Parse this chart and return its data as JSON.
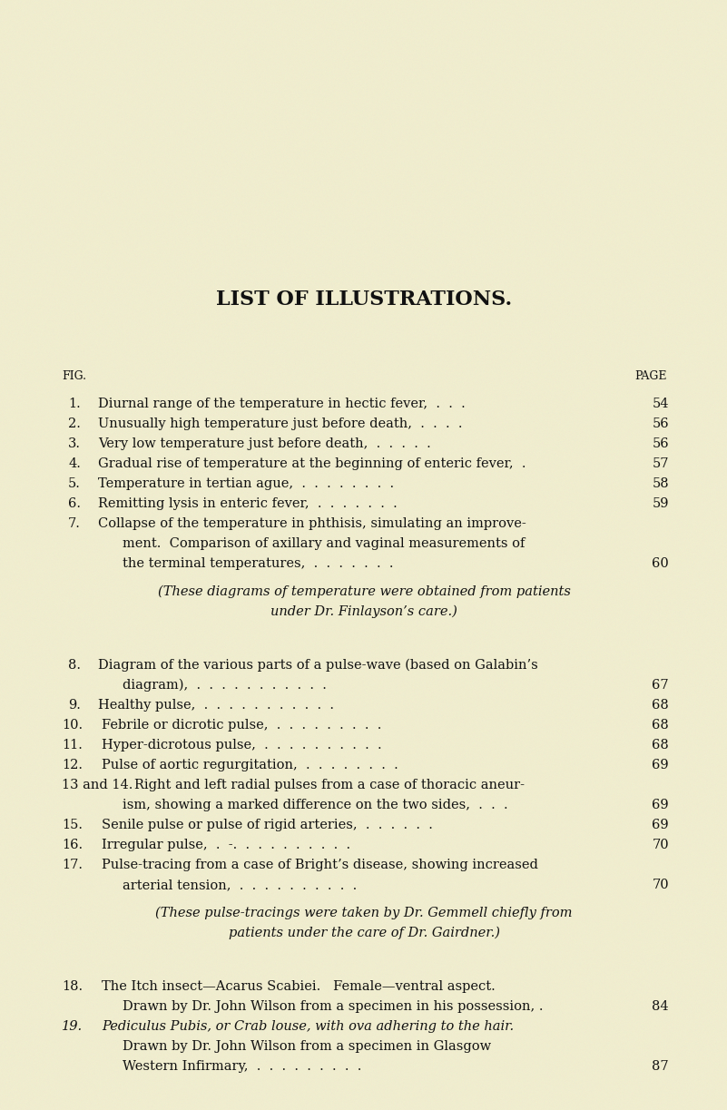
{
  "background_color": "#f0edcf",
  "title": "LIST OF ILLUSTRATIONS.",
  "title_fontsize": 16,
  "header_fig": "FIG.",
  "header_page": "PAGE",
  "bg_texture": true,
  "entries": [
    {
      "num": "1.",
      "lines": [
        "Diurnal range of the temperature in hectic fever,  .  .  ."
      ],
      "page": "54",
      "italic": false
    },
    {
      "num": "2.",
      "lines": [
        "Unusually high temperature just before death,  .  .  .  ."
      ],
      "page": "56",
      "italic": false
    },
    {
      "num": "3.",
      "lines": [
        "Very low temperature just before death,  .  .  .  .  ."
      ],
      "page": "56",
      "italic": false
    },
    {
      "num": "4.",
      "lines": [
        "Gradual rise of temperature at the beginning of enteric fever,  ."
      ],
      "page": "57",
      "italic": false
    },
    {
      "num": "5.",
      "lines": [
        "Temperature in tertian ague,  .  .  .  .  .  .  .  ."
      ],
      "page": "58",
      "italic": false
    },
    {
      "num": "6.",
      "lines": [
        "Remitting lysis in enteric fever,  .  .  .  .  .  .  ."
      ],
      "page": "59",
      "italic": false
    },
    {
      "num": "7.",
      "lines": [
        "Collapse of the temperature in phthisis, simulating an improve-",
        "ment.  Comparison of axillary and vaginal measurements of",
        "the terminal temperatures,  .  .  .  .  .  .  ."
      ],
      "page": "60",
      "italic": false,
      "continuation_indent": true
    },
    {
      "num": "",
      "lines": [
        "(These diagrams of temperature were obtained from patients",
        "under Dr. Finlayson’s care.)"
      ],
      "page": "",
      "italic": true,
      "centered": true,
      "spacer_after": true,
      "spacer_before": false
    },
    {
      "num": "8.",
      "lines": [
        "Diagram of the various parts of a pulse-wave (based on Galabin’s",
        "diagram),  .  .  .  .  .  .  .  .  .  .  ."
      ],
      "page": "67",
      "italic": false,
      "continuation_indent": true,
      "spacer_before": true
    },
    {
      "num": "9.",
      "lines": [
        "Healthy pulse,  .  .  .  .  .  .  .  .  .  .  ."
      ],
      "page": "68",
      "italic": false
    },
    {
      "num": "10.",
      "lines": [
        "Febrile or dicrotic pulse,  .  .  .  .  .  .  .  .  ."
      ],
      "page": "68",
      "italic": false
    },
    {
      "num": "11.",
      "lines": [
        "Hyper-dicrotous pulse,  .  .  .  .  .  .  .  .  .  ."
      ],
      "page": "68",
      "italic": false
    },
    {
      "num": "12.",
      "lines": [
        "Pulse of aortic regurgitation,  .  .  .  .  .  .  .  ."
      ],
      "page": "69",
      "italic": false
    },
    {
      "num": "13 and 14.",
      "lines": [
        "Right and left radial pulses from a case of thoracic aneur-",
        "ism, showing a marked difference on the two sides,  .  .  ."
      ],
      "page": "69",
      "italic": false,
      "continuation_indent": true
    },
    {
      "num": "15.",
      "lines": [
        "Senile pulse or pulse of rigid arteries,  .  .  .  .  .  ."
      ],
      "page": "69",
      "italic": false
    },
    {
      "num": "16.",
      "lines": [
        "Irregular pulse,  .  -.  .  .  .  .  .  .  .  .  ."
      ],
      "page": "70",
      "italic": false
    },
    {
      "num": "17.",
      "lines": [
        "Pulse-tracing from a case of Bright’s disease, showing increased",
        "arterial tension,  .  .  .  .  .  .  .  .  .  ."
      ],
      "page": "70",
      "italic": false,
      "continuation_indent": true
    },
    {
      "num": "",
      "lines": [
        "(These pulse-tracings were taken by Dr. Gemmell chiefly from",
        "patients under the care of Dr. Gairdner.)"
      ],
      "page": "",
      "italic": true,
      "centered": true,
      "spacer_after": true,
      "spacer_before": false
    },
    {
      "num": "18.",
      "lines": [
        "The Itch insect—Acarus Scabiei.   Female—ventral aspect.",
        "Drawn by Dr. John Wilson from a specimen in his possession, ."
      ],
      "page": "84",
      "italic": false,
      "continuation_indent": true,
      "spacer_before": true,
      "page_on_last": true
    },
    {
      "num": "19.",
      "lines": [
        "Pediculus Pubis, or Crab louse, with ova adhering to the hair.",
        "Drawn by Dr. John Wilson from a specimen in Glasgow",
        "Western Infirmary,  .  .  .  .  .  .  .  .  ."
      ],
      "page": "87",
      "italic": false,
      "continuation_indent": true,
      "italic_num": true,
      "page_on_last": true
    }
  ]
}
